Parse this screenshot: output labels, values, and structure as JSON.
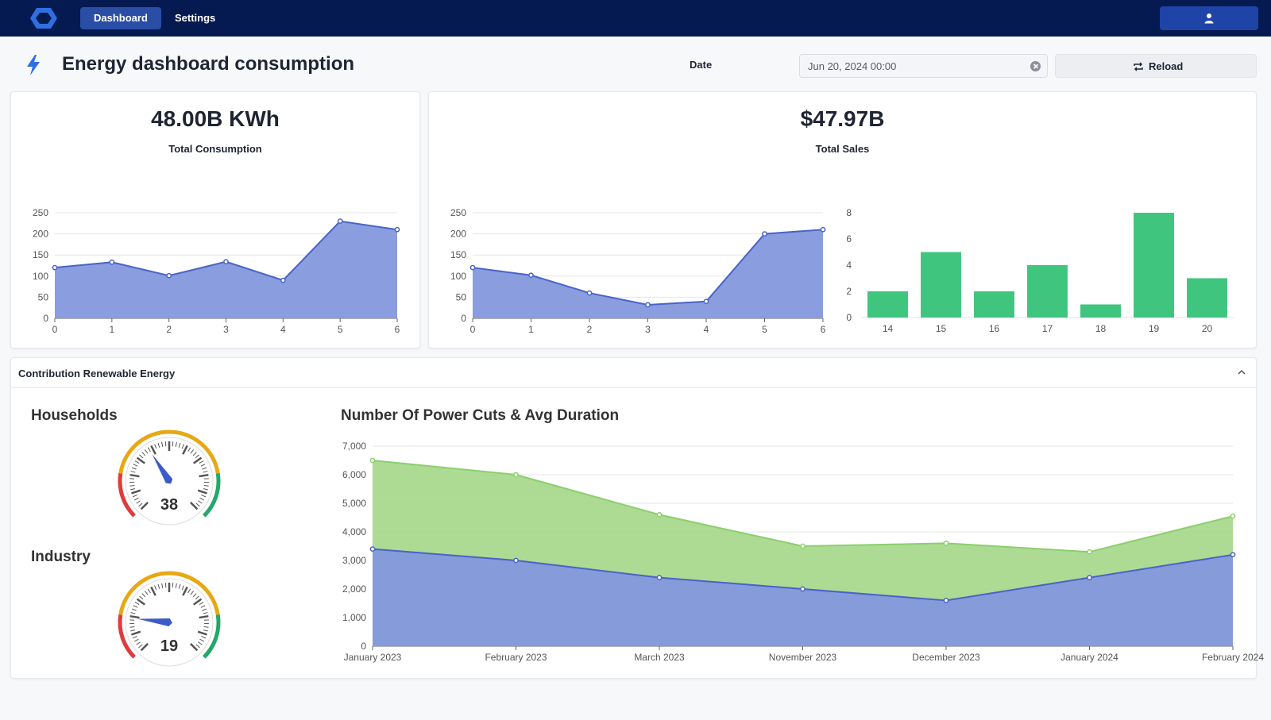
{
  "nav": {
    "tabs": [
      {
        "label": "Dashboard",
        "active": true
      },
      {
        "label": "Settings",
        "active": false
      }
    ],
    "logo_icon": "hexagon-logo-icon",
    "user_icon": "user-icon"
  },
  "header": {
    "title": "Energy dashboard consumption",
    "date_label": "Date",
    "date_value": "Jun 20, 2024 00:00",
    "reload_label": "Reload"
  },
  "kpis": {
    "consumption": {
      "value": "48.00B KWh",
      "label": "Total Consumption"
    },
    "sales": {
      "value": "$47.97B",
      "label": "Total Sales"
    }
  },
  "section": {
    "title": "Contribution Renewable Energy"
  },
  "gauges": [
    {
      "title": "Households",
      "value": 38,
      "display": "38",
      "min": 0,
      "max": 100
    },
    {
      "title": "Industry",
      "value": 19,
      "display": "19",
      "min": 0,
      "max": 100
    }
  ],
  "colors": {
    "nav_bg": "#061a52",
    "accent": "#2a4ea6",
    "area_blue": "#8498dc",
    "line_blue": "#4a63c8",
    "bar_green": "#3fc57e",
    "area_green": "#a9d98e",
    "line_green": "#8ccf6c"
  },
  "chart_data": [
    {
      "id": "consumption",
      "type": "area",
      "x": [
        0,
        1,
        2,
        3,
        4,
        5,
        6
      ],
      "values": [
        120,
        133,
        101,
        134,
        90,
        230,
        210
      ],
      "ylim": [
        0,
        250
      ],
      "yticks": [
        0,
        50,
        100,
        150,
        200,
        250
      ],
      "grid": true
    },
    {
      "id": "sales",
      "type": "area",
      "x": [
        0,
        1,
        2,
        3,
        4,
        5,
        6
      ],
      "values": [
        120,
        102,
        60,
        32,
        40,
        200,
        210
      ],
      "ylim": [
        0,
        250
      ],
      "yticks": [
        0,
        50,
        100,
        150,
        200,
        250
      ],
      "grid": true
    },
    {
      "id": "sales-bars",
      "type": "bar",
      "categories": [
        "14",
        "15",
        "16",
        "17",
        "18",
        "19",
        "20"
      ],
      "values": [
        2,
        5,
        2,
        4,
        1,
        8,
        3
      ],
      "ylim": [
        0,
        8
      ],
      "yticks": [
        0,
        2,
        4,
        6,
        8
      ],
      "grid": false
    },
    {
      "id": "power-cuts",
      "type": "area",
      "title": "Number Of Power Cuts & Avg Duration",
      "categories": [
        "January 2023",
        "February 2023",
        "March 2023",
        "November 2023",
        "December 2023",
        "January 2024",
        "February 2024"
      ],
      "series": [
        {
          "values": [
            3400,
            3000,
            2400,
            2000,
            1600,
            2400,
            3200
          ]
        },
        {
          "values": [
            6500,
            6000,
            4600,
            3500,
            3600,
            3300,
            4550
          ]
        }
      ],
      "ylim": [
        0,
        7000
      ],
      "yticks": [
        0,
        1000,
        2000,
        3000,
        4000,
        5000,
        6000,
        7000
      ],
      "grid": true,
      "stacked_display": false
    }
  ]
}
